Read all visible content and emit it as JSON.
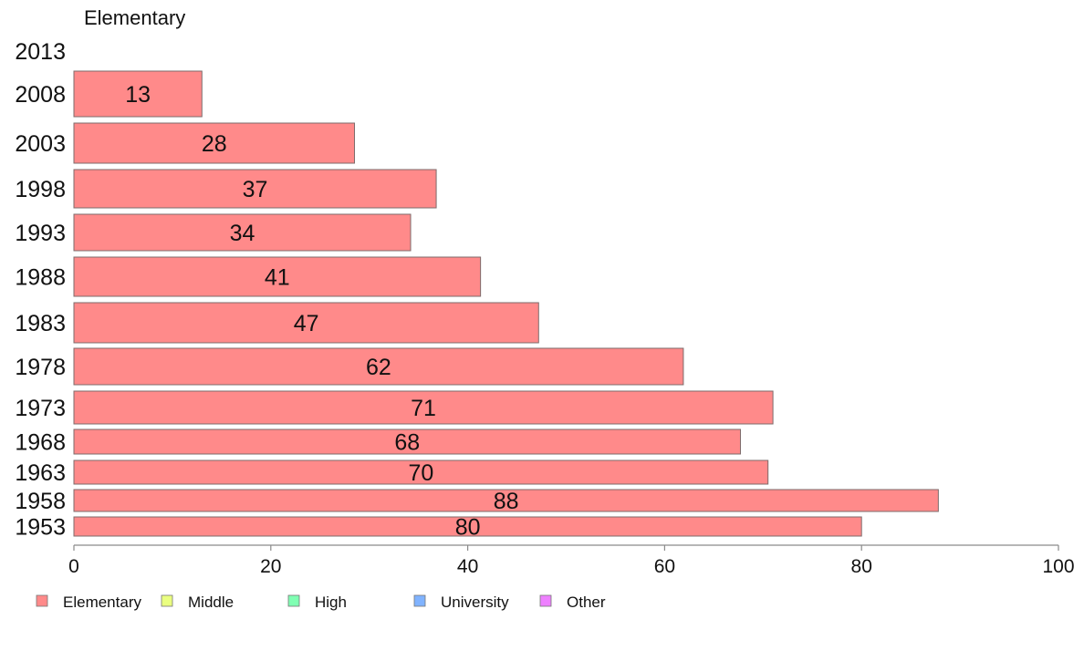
{
  "chart_data": {
    "type": "bar",
    "orientation": "horizontal",
    "title": "Elementary",
    "categories": [
      "2013",
      "2008",
      "2003",
      "1998",
      "1993",
      "1988",
      "1983",
      "1978",
      "1973",
      "1968",
      "1963",
      "1958",
      "1953"
    ],
    "series": [
      {
        "name": "Elementary",
        "color": "#ff8a8a",
        "values": [
          null,
          13,
          28.5,
          36.8,
          34.2,
          41.3,
          47.2,
          61.9,
          71,
          67.7,
          70.5,
          87.8,
          80
        ]
      }
    ],
    "data_labels": [
      "",
      "13",
      "28",
      "37",
      "34",
      "41",
      "47",
      "62",
      "71",
      "68",
      "70",
      "88",
      "80"
    ],
    "x_ticks": [
      "0",
      "20",
      "40",
      "60",
      "80",
      "100"
    ],
    "xlim": [
      0,
      100
    ],
    "grid": false,
    "legend": {
      "placement": "bottom-left",
      "entries": [
        {
          "label": "Elementary",
          "color": "#ff8a8a"
        },
        {
          "label": "Middle",
          "color": "#eaff80"
        },
        {
          "label": "High",
          "color": "#80ffb3"
        },
        {
          "label": "University",
          "color": "#80b3ff"
        },
        {
          "label": "Other",
          "color": "#ee80ff"
        }
      ]
    }
  }
}
